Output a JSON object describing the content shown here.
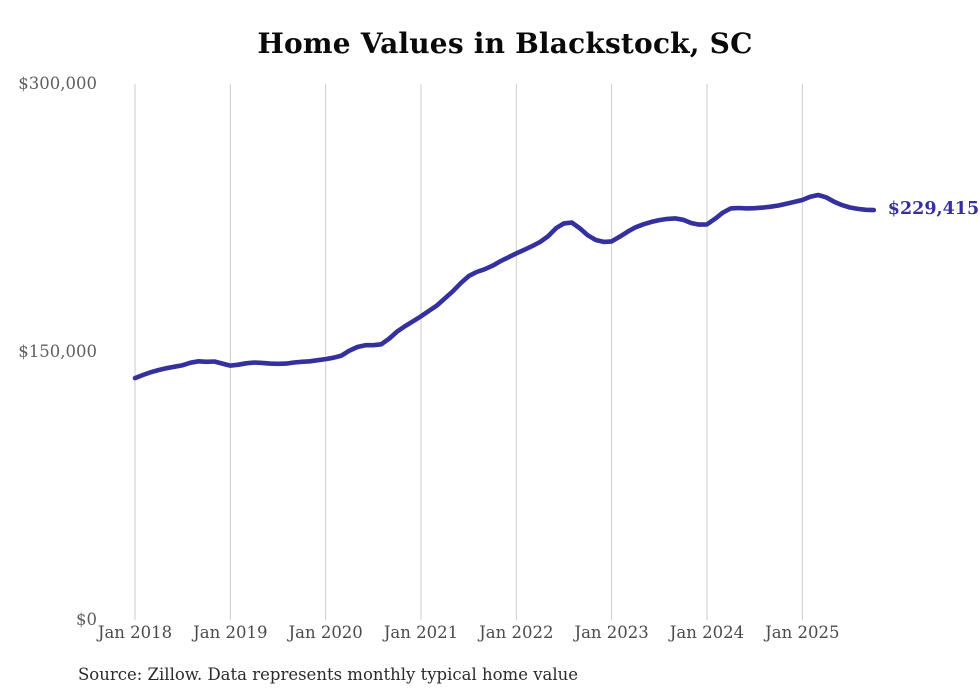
{
  "chart_data": {
    "type": "line",
    "title": "Home Values in Blackstock, SC",
    "series_name": "Typical home value",
    "frequency": "monthly",
    "x_start": "Jan 2018",
    "x_end": "Oct 2025",
    "x_tick_labels": [
      "Jan 2018",
      "Jan 2019",
      "Jan 2020",
      "Jan 2021",
      "Jan 2022",
      "Jan 2023",
      "Jan 2024",
      "Jan 2025"
    ],
    "y_ticks": [
      {
        "value": 0,
        "label": "$0"
      },
      {
        "value": 150000,
        "label": "$150,000"
      },
      {
        "value": 300000,
        "label": "$300,000"
      }
    ],
    "ylim": [
      0,
      300000
    ],
    "grid": "vertical-only",
    "legend": "none",
    "line_color": "#34309e",
    "gridline_color": "#cccccc",
    "end_label": "$229,415",
    "end_value": 229415,
    "values": [
      135400,
      137100,
      138700,
      139900,
      141000,
      141800,
      142600,
      144000,
      144800,
      144500,
      144700,
      143500,
      142400,
      142900,
      143700,
      144100,
      143900,
      143500,
      143400,
      143500,
      144100,
      144500,
      144800,
      145400,
      146000,
      146800,
      148000,
      150800,
      152800,
      153800,
      153800,
      154300,
      157500,
      161500,
      164500,
      167200,
      170000,
      173000,
      176000,
      180000,
      184000,
      188500,
      192500,
      194800,
      196300,
      198300,
      200800,
      203000,
      205200,
      207200,
      209300,
      211600,
      214800,
      219300,
      222000,
      222400,
      219200,
      215300,
      212700,
      211600,
      211900,
      214500,
      217300,
      219800,
      221500,
      222800,
      223800,
      224500,
      224800,
      224000,
      222200,
      221300,
      221400,
      224500,
      228000,
      230400,
      230600,
      230400,
      230500,
      230800,
      231300,
      232000,
      233000,
      234000,
      235100,
      236900,
      237900,
      236600,
      234100,
      232200,
      230900,
      230100,
      229600,
      229415
    ]
  },
  "footer": {
    "source": "Source: Zillow. Data represents monthly typical home value"
  }
}
